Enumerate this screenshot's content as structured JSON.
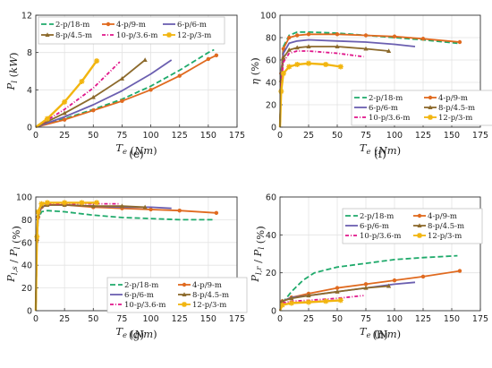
{
  "styles": {
    "2-p/18-m": {
      "color": "#1faa6b",
      "dash": "6,3",
      "marker": "none"
    },
    "4-p/9-m": {
      "color": "#e06a1f",
      "dash": "",
      "marker": "circle"
    },
    "6-p/6-m": {
      "color": "#6b5fb0",
      "dash": "",
      "marker": "none"
    },
    "8-p/4.5-m": {
      "color": "#8c6a2c",
      "dash": "",
      "marker": "triangle"
    },
    "10-p/3.6-m": {
      "color": "#e0168a",
      "dash": "4,2,1,2",
      "marker": "none"
    },
    "12-p/3-m": {
      "color": "#f2b50f",
      "dash": "",
      "marker": "star"
    }
  },
  "chart_data": [
    {
      "id": "e",
      "caption": "(e)",
      "type": "line",
      "xlabel": "T_e (Nm)",
      "ylabel": "P_l (kW)",
      "xlim": [
        0,
        175
      ],
      "ylim": [
        0,
        12
      ],
      "xticks": [
        "0",
        "25",
        "50",
        "75",
        "100",
        "125",
        "150",
        "175"
      ],
      "yticks": [
        "0",
        "4",
        "8",
        "12"
      ],
      "grid": true,
      "legend_placement": "top, inside, 3 columns",
      "series": [
        {
          "name": "2-p/18-m",
          "x": [
            0,
            25,
            50,
            75,
            100,
            125,
            150,
            155
          ],
          "y": [
            0,
            0.9,
            1.9,
            3.0,
            4.4,
            6.1,
            8.0,
            8.3
          ]
        },
        {
          "name": "4-p/9-m",
          "x": [
            0,
            25,
            50,
            75,
            100,
            125,
            150,
            157
          ],
          "y": [
            0,
            0.8,
            1.8,
            2.8,
            4.0,
            5.5,
            7.3,
            7.7
          ]
        },
        {
          "name": "6-p/6-m",
          "x": [
            0,
            25,
            50,
            75,
            100,
            118
          ],
          "y": [
            0,
            1.1,
            2.4,
            3.9,
            5.7,
            7.2
          ]
        },
        {
          "name": "8-p/4.5-m",
          "x": [
            0,
            25,
            50,
            75,
            95
          ],
          "y": [
            0,
            1.5,
            3.2,
            5.2,
            7.2
          ]
        },
        {
          "name": "10-p/3.6-m",
          "x": [
            0,
            25,
            50,
            73
          ],
          "y": [
            0,
            1.9,
            4.2,
            7.0
          ]
        },
        {
          "name": "12-p/3-m",
          "x": [
            0,
            10,
            25,
            40,
            53
          ],
          "y": [
            0,
            0.9,
            2.7,
            4.9,
            7.1
          ]
        }
      ]
    },
    {
      "id": "f",
      "caption": "(f)",
      "type": "line",
      "xlabel": "T_e (Nm)",
      "ylabel": "η (%)",
      "xlim": [
        0,
        175
      ],
      "ylim": [
        0,
        100
      ],
      "xticks": [
        "0",
        "25",
        "50",
        "75",
        "100",
        "125",
        "150",
        "175"
      ],
      "yticks": [
        "0",
        "20",
        "40",
        "60",
        "80",
        "100"
      ],
      "grid": true,
      "legend_placement": "bottom, inside, 2 columns",
      "series": [
        {
          "name": "2-p/18-m",
          "x": [
            0,
            1,
            3,
            8,
            15,
            25,
            50,
            75,
            100,
            125,
            155
          ],
          "y": [
            0,
            50,
            72,
            82,
            85,
            85,
            84,
            82,
            80,
            78,
            75
          ]
        },
        {
          "name": "4-p/9-m",
          "x": [
            0,
            1,
            3,
            8,
            15,
            25,
            50,
            75,
            100,
            125,
            157
          ],
          "y": [
            0,
            48,
            70,
            80,
            82,
            83,
            83,
            82,
            81,
            79,
            76
          ]
        },
        {
          "name": "6-p/6-m",
          "x": [
            0,
            1,
            3,
            8,
            15,
            25,
            50,
            75,
            100,
            118
          ],
          "y": [
            0,
            45,
            66,
            75,
            77,
            78,
            77,
            76,
            74,
            72
          ]
        },
        {
          "name": "8-p/4.5-m",
          "x": [
            0,
            1,
            3,
            8,
            15,
            25,
            50,
            75,
            95
          ],
          "y": [
            0,
            42,
            62,
            69,
            71,
            72,
            72,
            70,
            68
          ]
        },
        {
          "name": "10-p/3.6-m",
          "x": [
            0,
            1,
            3,
            8,
            15,
            25,
            50,
            73
          ],
          "y": [
            0,
            38,
            58,
            66,
            68,
            68,
            66,
            63
          ]
        },
        {
          "name": "12-p/3-m",
          "x": [
            0,
            1,
            3,
            8,
            15,
            25,
            40,
            53
          ],
          "y": [
            0,
            32,
            48,
            54,
            56,
            57,
            56,
            54
          ]
        }
      ]
    },
    {
      "id": "g",
      "caption": "(g)",
      "type": "line",
      "xlabel": "T_e (Nm)",
      "ylabel": "P_l,s / P_l (%)",
      "xlim": [
        0,
        175
      ],
      "ylim": [
        0,
        100
      ],
      "xticks": [
        "0",
        "25",
        "50",
        "75",
        "100",
        "125",
        "150",
        "175"
      ],
      "yticks": [
        "0",
        "20",
        "40",
        "60",
        "80",
        "100"
      ],
      "grid": true,
      "legend_placement": "bottom-right, inside, 2 columns",
      "series": [
        {
          "name": "2-p/18-m",
          "x": [
            0,
            1,
            2,
            5,
            10,
            25,
            50,
            75,
            100,
            125,
            155
          ],
          "y": [
            0,
            60,
            80,
            87,
            88,
            87,
            84,
            82,
            81,
            80,
            80
          ]
        },
        {
          "name": "4-p/9-m",
          "x": [
            0,
            1,
            2,
            5,
            10,
            25,
            50,
            75,
            100,
            125,
            157
          ],
          "y": [
            0,
            62,
            82,
            91,
            93,
            93,
            91,
            90,
            89,
            88,
            86
          ]
        },
        {
          "name": "6-p/6-m",
          "x": [
            0,
            1,
            2,
            5,
            10,
            25,
            50,
            75,
            100,
            118
          ],
          "y": [
            0,
            62,
            83,
            91,
            93,
            93,
            92,
            91,
            91,
            90
          ]
        },
        {
          "name": "8-p/4.5-m",
          "x": [
            0,
            1,
            2,
            5,
            10,
            25,
            50,
            75,
            95
          ],
          "y": [
            0,
            63,
            84,
            92,
            93,
            93,
            92,
            92,
            91
          ]
        },
        {
          "name": "10-p/3.6-m",
          "x": [
            0,
            1,
            2,
            5,
            10,
            25,
            50,
            73
          ],
          "y": [
            0,
            64,
            85,
            93,
            94,
            94,
            94,
            94
          ]
        },
        {
          "name": "12-p/3-m",
          "x": [
            0,
            1,
            2,
            5,
            10,
            25,
            40,
            53
          ],
          "y": [
            0,
            65,
            87,
            94,
            95,
            95,
            95,
            95
          ]
        }
      ]
    },
    {
      "id": "h",
      "caption": "(h)",
      "type": "line",
      "xlabel": "T_e (Nm)",
      "ylabel": "P_l,r / P_l (%)",
      "xlim": [
        0,
        175
      ],
      "ylim": [
        0,
        60
      ],
      "xticks": [
        "0",
        "25",
        "50",
        "75",
        "100",
        "125",
        "150",
        "175"
      ],
      "yticks": [
        "0",
        "20",
        "40",
        "60"
      ],
      "grid": true,
      "legend_placement": "top-right, inside, 2 columns",
      "series": [
        {
          "name": "2-p/18-m",
          "x": [
            0,
            2,
            10,
            20,
            30,
            50,
            75,
            100,
            125,
            155
          ],
          "y": [
            0,
            4,
            10,
            16,
            20,
            23,
            25,
            27,
            28,
            29
          ]
        },
        {
          "name": "4-p/9-m",
          "x": [
            0,
            2,
            10,
            25,
            50,
            75,
            100,
            125,
            157
          ],
          "y": [
            0,
            5,
            7,
            9,
            12,
            14,
            16,
            18,
            21
          ]
        },
        {
          "name": "6-p/6-m",
          "x": [
            0,
            2,
            10,
            25,
            50,
            75,
            100,
            118
          ],
          "y": [
            0,
            5,
            7,
            8,
            10,
            12,
            14,
            15
          ]
        },
        {
          "name": "8-p/4.5-m",
          "x": [
            0,
            2,
            10,
            25,
            50,
            75,
            95
          ],
          "y": [
            0,
            5,
            6.5,
            8,
            10,
            12,
            13
          ]
        },
        {
          "name": "10-p/3.6-m",
          "x": [
            0,
            2,
            10,
            25,
            50,
            73
          ],
          "y": [
            0,
            4,
            5,
            5.5,
            6.5,
            8
          ]
        },
        {
          "name": "12-p/3-m",
          "x": [
            0,
            2,
            10,
            25,
            40,
            53
          ],
          "y": [
            0,
            3,
            4,
            4.5,
            5,
            5.5
          ]
        }
      ]
    }
  ]
}
